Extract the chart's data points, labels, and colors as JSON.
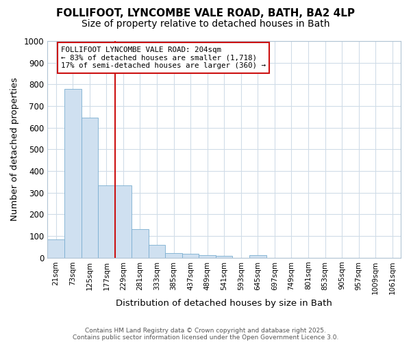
{
  "title_line1": "FOLLIFOOT, LYNCOMBE VALE ROAD, BATH, BA2 4LP",
  "title_line2": "Size of property relative to detached houses in Bath",
  "xlabel": "Distribution of detached houses by size in Bath",
  "ylabel": "Number of detached properties",
  "bar_labels": [
    "21sqm",
    "73sqm",
    "125sqm",
    "177sqm",
    "229sqm",
    "281sqm",
    "333sqm",
    "385sqm",
    "437sqm",
    "489sqm",
    "541sqm",
    "593sqm",
    "645sqm",
    "697sqm",
    "749sqm",
    "801sqm",
    "853sqm",
    "905sqm",
    "957sqm",
    "1009sqm",
    "1061sqm"
  ],
  "bar_values": [
    85,
    780,
    645,
    335,
    335,
    130,
    58,
    22,
    18,
    10,
    8,
    0,
    10,
    0,
    0,
    0,
    0,
    0,
    0,
    0,
    0
  ],
  "bar_color": "#cfe0f0",
  "bar_edge_color": "#7aaed0",
  "vline_color": "#cc1111",
  "annotation_line1": "FOLLIFOOT LYNCOMBE VALE ROAD: 204sqm",
  "annotation_line2": "← 83% of detached houses are smaller (1,718)",
  "annotation_line3": "17% of semi-detached houses are larger (360) →",
  "annotation_box_color": "#ffffff",
  "annotation_box_edge": "#cc1111",
  "ylim": [
    0,
    1000
  ],
  "yticks": [
    0,
    100,
    200,
    300,
    400,
    500,
    600,
    700,
    800,
    900,
    1000
  ],
  "background_color": "#ffffff",
  "plot_bg_color": "#ffffff",
  "grid_color": "#d0dce8",
  "footer_line1": "Contains HM Land Registry data © Crown copyright and database right 2025.",
  "footer_line2": "Contains public sector information licensed under the Open Government Licence 3.0.",
  "title_fontsize": 11,
  "subtitle_fontsize": 10
}
